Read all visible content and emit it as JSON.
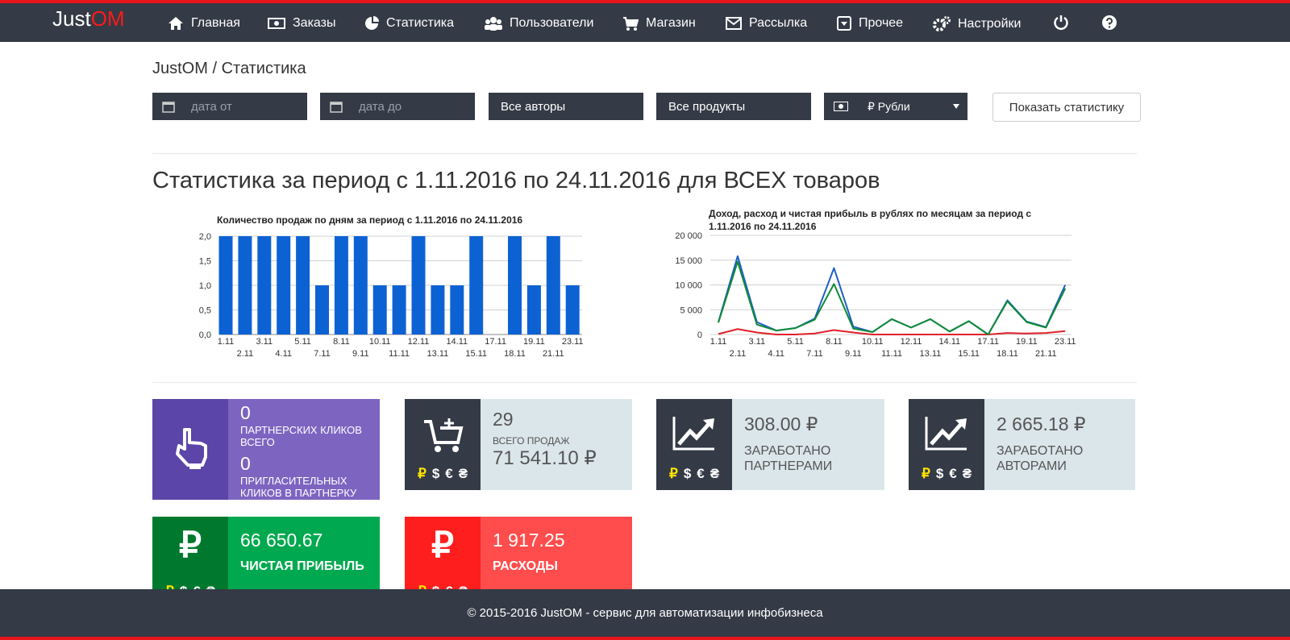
{
  "nav": {
    "brand": "Just",
    "brand_accent": "OM",
    "items": [
      "Главная",
      "Заказы",
      "Статистика",
      "Пользователи",
      "Магазин",
      "Рассылка",
      "Прочее",
      "Настройки"
    ]
  },
  "breadcrumb": "JustOM / Статистика",
  "filters": {
    "date_from": "дата от",
    "date_to": "дата до",
    "authors": "Все авторы",
    "products": "Все продукты",
    "currency": "₽ Рубли",
    "button": "Показать статистику"
  },
  "heading": "Статистика за период с 1.11.2016 по 24.11.2016 для ВСЕХ товаров",
  "chart_data": [
    {
      "type": "bar",
      "title": "Количество продаж по дням за период с 1.11.2016 по 24.11.2016",
      "categories": [
        "1.11",
        "2.11",
        "3.11",
        "4.11",
        "5.11",
        "7.11",
        "8.11",
        "9.11",
        "10.11",
        "11.11",
        "12.11",
        "13.11",
        "14.11",
        "15.11",
        "17.11",
        "18.11",
        "19.11",
        "21.11",
        "23.11"
      ],
      "values": [
        2,
        2,
        2,
        2,
        2,
        1,
        2,
        2,
        1,
        1,
        2,
        1,
        1,
        2,
        0,
        2,
        1,
        2,
        1
      ],
      "color": "#0d62d3",
      "ylim": [
        0,
        2
      ],
      "yticks": [
        {
          "value": 0,
          "label": "0,0"
        },
        {
          "value": 0.5,
          "label": "0,5"
        },
        {
          "value": 1,
          "label": "1,0"
        },
        {
          "value": 1.5,
          "label": "1,5"
        },
        {
          "value": 2,
          "label": "2,0"
        }
      ],
      "grid": true
    },
    {
      "type": "line",
      "title": "Доход, расход и чистая прибыль в рублях по месяцам за период с 1.11.2016 по 24.11.2016",
      "categories": [
        "1.11",
        "2.11",
        "3.11",
        "4.11",
        "5.11",
        "7.11",
        "8.11",
        "9.11",
        "10.11",
        "11.11",
        "12.11",
        "13.11",
        "14.11",
        "15.11",
        "17.11",
        "18.11",
        "19.11",
        "21.11",
        "23.11"
      ],
      "series": [
        {
          "color": "#1f5fc8",
          "values": [
            2500,
            15800,
            2500,
            800,
            1300,
            3200,
            13400,
            1600,
            500,
            3100,
            1400,
            3100,
            600,
            2700,
            0,
            6900,
            2600,
            1500,
            10000
          ]
        },
        {
          "color": "#e0202a",
          "values": [
            100,
            1100,
            400,
            0,
            0,
            200,
            900,
            400,
            0,
            0,
            0,
            0,
            0,
            0,
            0,
            300,
            200,
            300,
            700
          ]
        },
        {
          "color": "#0f8a35",
          "values": [
            2400,
            14700,
            2000,
            800,
            1300,
            3000,
            10200,
            1200,
            500,
            3100,
            1400,
            3100,
            600,
            2700,
            0,
            6700,
            2500,
            1400,
            9300
          ]
        }
      ],
      "ylim": [
        0,
        20000
      ],
      "yticks": [
        0,
        {
          "value": 5000,
          "label": "5 000"
        },
        {
          "value": 10000,
          "label": "10 000"
        },
        {
          "value": 15000,
          "label": "15 000"
        },
        {
          "value": 20000,
          "label": "20 000"
        }
      ],
      "grid": true
    }
  ],
  "cards": [
    {
      "value": "0",
      "label": "ПАРТНЕРСКИХ КЛИКОВ ВСЕГО",
      "value2": "0",
      "label2": "ПРИГЛАСИТЕЛЬНЫХ КЛИКОВ В ПАРТНЕРКУ"
    },
    {
      "value": "29",
      "label": "ВСЕГО ПРОДАЖ",
      "value2": "71 541.10 ₽"
    },
    {
      "value": "308.00 ₽",
      "label": "ЗАРАБОТАНО ПАРТНЕРАМИ"
    },
    {
      "value": "2 665.18 ₽",
      "label": "ЗАРАБОТАНО АВТОРАМИ"
    },
    {
      "icon": "₽",
      "value": "66 650.67",
      "label": "ЧИСТАЯ ПРИБЫЛЬ"
    },
    {
      "icon": "₽",
      "value": "1 917.25",
      "label": "РАСХОДЫ"
    }
  ],
  "currencies": [
    "₽",
    "$",
    "€",
    "₴"
  ],
  "footer": "© 2015-2016 JustOM - сервис для автоматизации инфобизнеса"
}
